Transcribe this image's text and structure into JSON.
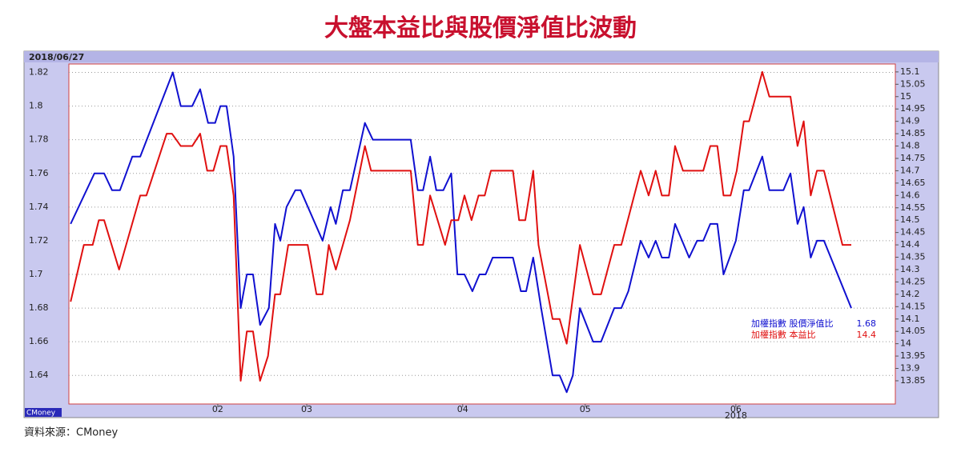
{
  "chart_data": {
    "type": "line",
    "title": "大盤本益比與股價淨值比波動",
    "date_label": "2018/06/27",
    "brand_label": "CMoney",
    "source": "資料來源：CMoney",
    "year_label": "2018",
    "xlim": [
      -0.2,
      93.6
    ],
    "xticks": [
      {
        "value": 16.7,
        "label": "02"
      },
      {
        "value": 26.8,
        "label": "03"
      },
      {
        "value": 44.5,
        "label": "04"
      },
      {
        "value": 58.4,
        "label": "05"
      },
      {
        "value": 75.5,
        "label": "06"
      }
    ],
    "ylim": [
      1.623,
      1.825
    ],
    "yticks": [
      1.64,
      1.66,
      1.68,
      1.7,
      1.72,
      1.74,
      1.76,
      1.78,
      1.8,
      1.82
    ],
    "y2lim": [
      13.756,
      15.132
    ],
    "y2ticks": [
      13.85,
      13.9,
      13.95,
      14,
      14.05,
      14.1,
      14.15,
      14.2,
      14.25,
      14.3,
      14.35,
      14.4,
      14.45,
      14.5,
      14.55,
      14.6,
      14.65,
      14.7,
      14.75,
      14.8,
      14.85,
      14.9,
      14.95,
      15,
      15.05,
      15.1
    ],
    "grid": true,
    "series": [
      {
        "name": "加權指數 股價淨值比",
        "color": "#1010d0",
        "x": [
          0,
          2.7,
          3.8,
          4.7,
          5.6,
          7.0,
          7.9,
          11.6,
          12.5,
          13.8,
          14.7,
          15.6,
          16.4,
          17.0,
          17.7,
          18.5,
          19.3,
          20.0,
          20.7,
          21.5,
          22.5,
          23.2,
          23.8,
          24.5,
          25.5,
          26.1,
          28.6,
          29.5,
          30.1,
          30.9,
          31.7,
          33.4,
          34.3,
          38.6,
          39.4,
          40.0,
          40.8,
          41.5,
          42.3,
          43.2,
          43.9,
          44.7,
          45.6,
          46.4,
          47.1,
          47.9,
          50.2,
          51.1,
          51.7,
          52.5,
          53.4,
          54.7,
          55.5,
          56.3,
          57.0,
          57.8,
          59.3,
          60.2,
          61.7,
          62.5,
          63.3,
          64.7,
          65.6,
          66.4,
          67.1,
          67.9,
          68.6,
          70.2,
          71.1,
          71.8,
          72.6,
          73.4,
          74.1,
          75.5,
          76.4,
          77.0,
          78.5,
          79.3,
          80.9,
          81.7,
          82.5,
          83.2,
          84.0,
          84.7,
          85.5,
          88.6
        ],
        "values": [
          1.73,
          1.76,
          1.76,
          1.75,
          1.75,
          1.77,
          1.77,
          1.82,
          1.8,
          1.8,
          1.81,
          1.79,
          1.79,
          1.8,
          1.8,
          1.77,
          1.68,
          1.7,
          1.7,
          1.67,
          1.68,
          1.73,
          1.72,
          1.74,
          1.75,
          1.75,
          1.72,
          1.74,
          1.73,
          1.75,
          1.75,
          1.79,
          1.78,
          1.78,
          1.75,
          1.75,
          1.77,
          1.75,
          1.75,
          1.76,
          1.7,
          1.7,
          1.69,
          1.7,
          1.7,
          1.71,
          1.71,
          1.69,
          1.69,
          1.71,
          1.68,
          1.64,
          1.64,
          1.63,
          1.64,
          1.68,
          1.66,
          1.66,
          1.68,
          1.68,
          1.69,
          1.72,
          1.71,
          1.72,
          1.71,
          1.71,
          1.73,
          1.71,
          1.72,
          1.72,
          1.73,
          1.73,
          1.7,
          1.72,
          1.75,
          1.75,
          1.77,
          1.75,
          1.75,
          1.76,
          1.73,
          1.74,
          1.71,
          1.72,
          1.72,
          1.68
        ]
      },
      {
        "name": "加權指數 本益比",
        "color": "#e01010",
        "axis": "y2",
        "x": [
          0,
          1.5,
          2.5,
          3.2,
          3.8,
          5.5,
          7.9,
          8.6,
          10.9,
          11.5,
          12.5,
          13.8,
          14.7,
          15.5,
          16.2,
          17.0,
          17.7,
          18.5,
          19.3,
          20.0,
          20.7,
          21.5,
          22.4,
          23.2,
          23.8,
          24.7,
          26.9,
          27.9,
          28.6,
          29.3,
          30.1,
          31.7,
          33.4,
          34.1,
          38.6,
          39.4,
          40.0,
          40.8,
          42.5,
          43.2,
          44.0,
          44.7,
          45.5,
          46.3,
          47.0,
          47.7,
          50.2,
          50.9,
          51.6,
          52.5,
          53.1,
          54.7,
          55.5,
          56.3,
          57.8,
          59.3,
          60.2,
          61.7,
          62.5,
          64.7,
          65.6,
          66.4,
          67.1,
          67.9,
          68.6,
          69.5,
          71.8,
          72.6,
          73.4,
          74.1,
          74.9,
          75.6,
          76.4,
          77.0,
          78.5,
          79.3,
          81.7,
          82.5,
          83.2,
          84.0,
          84.7,
          85.5,
          87.6,
          88.6
        ],
        "values": [
          14.17,
          14.4,
          14.4,
          14.5,
          14.5,
          14.3,
          14.6,
          14.6,
          14.85,
          14.85,
          14.8,
          14.8,
          14.85,
          14.7,
          14.7,
          14.8,
          14.8,
          14.6,
          13.85,
          14.05,
          14.05,
          13.85,
          13.95,
          14.2,
          14.2,
          14.4,
          14.4,
          14.2,
          14.2,
          14.4,
          14.3,
          14.5,
          14.8,
          14.7,
          14.7,
          14.4,
          14.4,
          14.6,
          14.4,
          14.5,
          14.5,
          14.6,
          14.5,
          14.6,
          14.6,
          14.7,
          14.7,
          14.5,
          14.5,
          14.7,
          14.4,
          14.1,
          14.1,
          14.0,
          14.4,
          14.2,
          14.2,
          14.4,
          14.4,
          14.7,
          14.6,
          14.7,
          14.6,
          14.6,
          14.8,
          14.7,
          14.7,
          14.8,
          14.8,
          14.6,
          14.6,
          14.7,
          14.9,
          14.9,
          15.1,
          15.0,
          15.0,
          14.8,
          14.9,
          14.6,
          14.7,
          14.7,
          14.4,
          14.4
        ]
      }
    ]
  }
}
